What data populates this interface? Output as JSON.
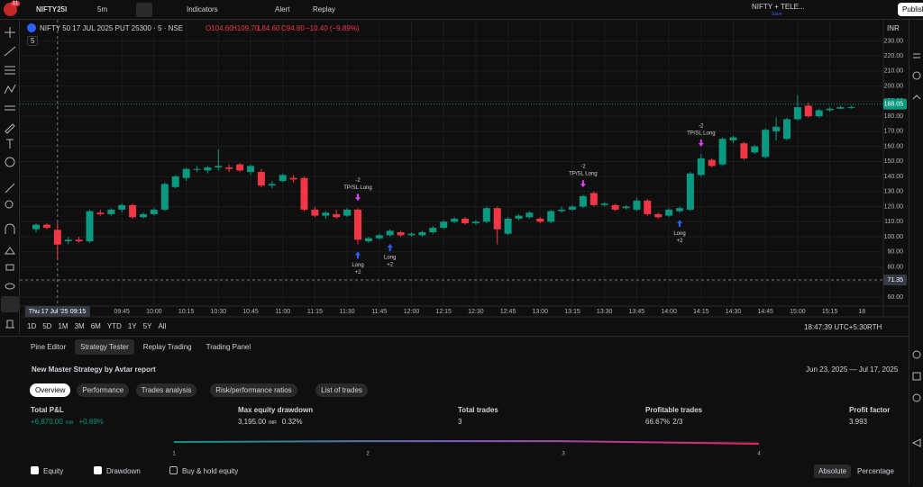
{
  "toolbar": {
    "badge": "11",
    "symbol": "NIFTY25I",
    "interval": "5m",
    "indicators": "Indicators",
    "alert": "Alert",
    "replay": "Replay",
    "layout_name": "NIFTY + TELE...",
    "layout_status": "Save",
    "publish": "Publish"
  },
  "legend": {
    "title": "NIFTY 50 17 JUL 2025 PUT 25300 · 5 · NSE",
    "open": "O104.60",
    "high": "H109.70",
    "low": "L84.60",
    "close": "C94.80",
    "change": "−10.40 (−9.89%)",
    "count": "5"
  },
  "chart_data": {
    "type": "candlestick",
    "currency": "INR",
    "up_color": "#089981",
    "down_color": "#f23645",
    "grid": true,
    "ylim": [
      54,
      244
    ],
    "yticks": [
      {
        "value": 60,
        "label": "60.00"
      },
      {
        "value": 70,
        "label": "70.00"
      },
      {
        "value": 80,
        "label": "80.00"
      },
      {
        "value": 90,
        "label": "90.00"
      },
      {
        "value": 100,
        "label": "100.00"
      },
      {
        "value": 110,
        "label": "110.00"
      },
      {
        "value": 120,
        "label": "120.00"
      },
      {
        "value": 130,
        "label": "130.00"
      },
      {
        "value": 140,
        "label": "140.00"
      },
      {
        "value": 150,
        "label": "150.00"
      },
      {
        "value": 160,
        "label": "160.00"
      },
      {
        "value": 170,
        "label": "170.00"
      },
      {
        "value": 180,
        "label": "180.00"
      },
      {
        "value": 190,
        "label": "190.00"
      },
      {
        "value": 200,
        "label": "200.00"
      },
      {
        "value": 210,
        "label": "210.00"
      },
      {
        "value": 220,
        "label": "220.00"
      },
      {
        "value": 230,
        "label": "230.00"
      }
    ],
    "candles": [
      [
        105,
        109,
        103,
        108
      ],
      [
        108,
        109,
        105,
        106
      ],
      [
        104.6,
        109.7,
        84.6,
        94.8
      ],
      [
        97,
        100,
        95,
        98
      ],
      [
        98,
        100,
        96,
        97
      ],
      [
        97,
        118,
        96,
        117
      ],
      [
        116,
        118,
        114,
        115
      ],
      [
        115,
        119,
        114,
        118
      ],
      [
        118,
        122,
        116,
        121
      ],
      [
        121,
        122,
        112,
        113
      ],
      [
        113,
        116,
        112,
        115
      ],
      [
        115,
        119,
        114,
        118
      ],
      [
        118,
        136,
        117,
        135
      ],
      [
        133,
        141,
        132,
        140
      ],
      [
        139,
        146,
        137,
        145
      ],
      [
        145,
        147,
        143,
        145
      ],
      [
        144,
        147,
        142,
        146
      ],
      [
        146,
        158,
        144,
        147
      ],
      [
        146,
        148,
        143,
        145
      ],
      [
        148,
        149,
        143,
        144
      ],
      [
        143,
        148,
        141,
        147
      ],
      [
        143,
        145,
        133,
        134
      ],
      [
        134,
        137,
        132,
        135
      ],
      [
        137,
        142,
        136,
        141
      ],
      [
        139,
        141,
        136,
        138
      ],
      [
        139,
        140,
        117,
        118
      ],
      [
        118,
        120,
        113,
        114
      ],
      [
        114,
        117,
        112,
        116
      ],
      [
        115,
        118,
        112,
        113
      ],
      [
        114,
        119,
        113,
        118
      ],
      [
        118,
        119,
        95,
        98
      ],
      [
        97,
        100,
        96,
        99
      ],
      [
        99,
        102,
        98,
        101
      ],
      [
        101,
        105,
        100,
        104
      ],
      [
        103,
        104,
        100,
        101
      ],
      [
        101,
        103,
        100,
        102
      ],
      [
        101,
        104,
        100,
        103
      ],
      [
        103,
        107,
        102,
        106
      ],
      [
        106,
        111,
        105,
        110
      ],
      [
        110,
        113,
        109,
        112
      ],
      [
        112,
        113,
        108,
        109
      ],
      [
        109,
        111,
        108,
        110
      ],
      [
        110,
        120,
        109,
        119
      ],
      [
        119,
        120,
        95,
        105
      ],
      [
        102,
        113,
        101,
        112
      ],
      [
        112,
        115,
        111,
        114
      ],
      [
        113,
        117,
        112,
        116
      ],
      [
        112,
        113,
        109,
        110
      ],
      [
        110,
        118,
        109,
        117
      ],
      [
        117,
        120,
        116,
        118
      ],
      [
        118,
        121,
        117,
        120
      ],
      [
        120,
        128,
        119,
        127
      ],
      [
        129,
        130,
        120,
        121
      ],
      [
        121,
        123,
        120,
        122
      ],
      [
        121,
        122,
        117,
        118
      ],
      [
        119,
        121,
        118,
        120
      ],
      [
        118,
        126,
        117,
        124
      ],
      [
        124,
        125,
        114,
        115
      ],
      [
        115,
        116,
        112,
        113
      ],
      [
        114,
        119,
        113,
        118
      ],
      [
        117,
        120,
        116,
        119
      ],
      [
        118,
        143,
        117,
        142
      ],
      [
        141,
        155,
        140,
        152
      ],
      [
        151,
        152,
        146,
        147
      ],
      [
        148,
        166,
        147,
        165
      ],
      [
        164,
        167,
        162,
        166
      ],
      [
        162,
        163,
        151,
        152
      ],
      [
        156,
        161,
        155,
        160
      ],
      [
        153,
        172,
        152,
        171
      ],
      [
        170,
        179,
        164,
        173
      ],
      [
        165,
        179,
        164,
        178
      ],
      [
        178,
        194,
        177,
        186
      ],
      [
        187,
        189,
        179,
        180
      ],
      [
        180,
        185,
        179,
        184
      ],
      [
        184,
        186,
        183,
        185
      ],
      [
        185,
        187,
        185,
        186
      ],
      [
        186,
        187,
        185,
        186
      ]
    ],
    "time_labels": [
      "09:45",
      "10:00",
      "10:15",
      "10:30",
      "10:45",
      "11:00",
      "11:15",
      "11:30",
      "11:45",
      "12:00",
      "12:15",
      "12:30",
      "12:45",
      "13:00",
      "13:15",
      "13:30",
      "13:45",
      "14:00",
      "14:15",
      "14:30",
      "14:45",
      "15:00",
      "15:15"
    ],
    "date_label": "18",
    "last_price": {
      "value": 188.05,
      "label": "188.05"
    },
    "crosshair_price": {
      "value": 71.35,
      "label": "71.35"
    },
    "crosshair_index": 2,
    "crosshair_date": "Thu 17 Jul '25",
    "crosshair_time": "09:15",
    "entries": [
      {
        "index": 30,
        "label": "Long",
        "qty": "+2"
      },
      {
        "index": 33,
        "label": "Long",
        "qty": "+2"
      },
      {
        "index": 60,
        "label": "Long",
        "qty": "+2"
      }
    ],
    "exits": [
      {
        "index": 30,
        "label": "TP/SL Long",
        "qty": "-2"
      },
      {
        "index": 51,
        "label": "TP/SL Long",
        "qty": "-2"
      },
      {
        "index": 62,
        "label": "TP/SL Long",
        "qty": "-2"
      }
    ]
  },
  "range_bar": {
    "ranges": [
      "1D",
      "5D",
      "1M",
      "3M",
      "6M",
      "YTD",
      "1Y",
      "5Y",
      "All"
    ],
    "clock": "18:47:39 UTC+5:30",
    "session": "RTH"
  },
  "panel": {
    "tabs": [
      "Pine Editor",
      "Strategy Tester",
      "Replay Trading",
      "Trading Panel"
    ],
    "strategy": "New Master Strategy by Avtar report",
    "date_range": "Jun 23, 2025 — Jul 17, 2025",
    "subtabs": [
      "Overview",
      "Performance",
      "Trades analysis",
      "Risk/performance ratios",
      "List of trades"
    ],
    "metrics": [
      {
        "label": "Total P&L",
        "value": "+6,870.00",
        "unit": "INR",
        "extra": "+0.69%"
      },
      {
        "label": "Max equity drawdown",
        "value": "3,195.00",
        "unit": "INR",
        "extra": "0.32%"
      },
      {
        "label": "Total trades",
        "value": "3"
      },
      {
        "label": "Profitable trades",
        "value": "66.67%",
        "extra": "2/3"
      },
      {
        "label": "Profit factor",
        "value": "3.993"
      }
    ],
    "equity_axis": [
      "1",
      "2",
      "3",
      "4"
    ],
    "checks": [
      "Equity",
      "Drawdown",
      "Buy & hold equity"
    ],
    "modes": [
      "Absolute",
      "Percentage"
    ]
  }
}
